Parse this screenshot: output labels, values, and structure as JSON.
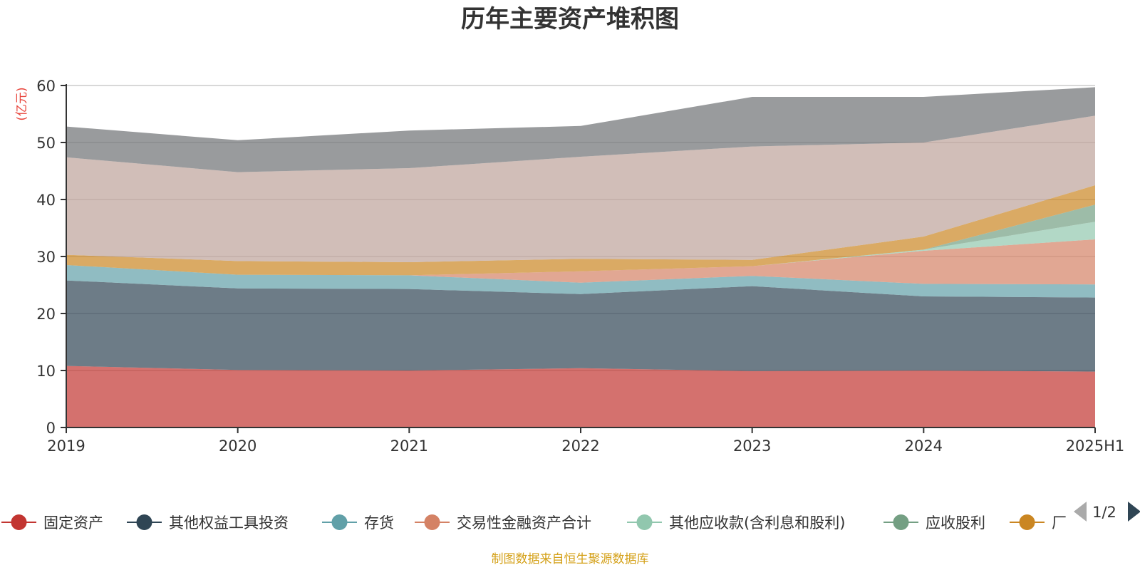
{
  "chart_data": {
    "type": "area",
    "stacked": true,
    "title": "历年主要资产堆积图",
    "unit_label": "亿元",
    "x": [
      "2019",
      "2020",
      "2021",
      "2022",
      "2023",
      "2024",
      "2025H1"
    ],
    "ylim": [
      0,
      60
    ],
    "yticks": [
      0,
      10,
      20,
      30,
      40,
      50,
      60
    ],
    "grid": true,
    "series": [
      {
        "name": "固定资产",
        "color": "#c23531",
        "values": [
          10.8,
          10.1,
          10.0,
          10.4,
          9.9,
          10.0,
          9.8
        ]
      },
      {
        "name": "其他权益工具投资",
        "color": "#2f4554",
        "values": [
          15.0,
          14.3,
          14.3,
          13.0,
          14.9,
          13.0,
          13.0
        ]
      },
      {
        "name": "存货",
        "color": "#61a0a8",
        "values": [
          2.7,
          2.4,
          2.4,
          2.0,
          1.8,
          2.2,
          2.3
        ]
      },
      {
        "name": "交易性金融资产合计",
        "color": "#d48265",
        "values": [
          0.0,
          0.0,
          0.0,
          2.0,
          1.7,
          5.8,
          7.9
        ]
      },
      {
        "name": "其他应收款(含利息和股利)",
        "color": "#91c7ae",
        "values": [
          0.0,
          0.0,
          0.0,
          0.0,
          0.0,
          0.2,
          3.1
        ]
      },
      {
        "name": "应收股利",
        "color": "#749f83",
        "values": [
          0.0,
          0.0,
          0.0,
          0.0,
          0.0,
          0.0,
          3.0
        ]
      },
      {
        "name": "",
        "color": "#ca8622",
        "values": [
          1.8,
          2.4,
          2.3,
          2.2,
          1.1,
          2.3,
          3.4
        ]
      },
      {
        "name": "",
        "color": "#bda29a",
        "values": [
          17.1,
          15.6,
          16.5,
          17.9,
          19.9,
          16.5,
          12.2
        ]
      },
      {
        "name": "",
        "color": "#6e7074",
        "values": [
          5.4,
          5.6,
          6.6,
          5.4,
          8.7,
          8.0,
          5.0
        ]
      }
    ],
    "legend": {
      "placement": "bottom",
      "visible_items": [
        "固定资产",
        "其他权益工具投资",
        "存货",
        "交易性金融资产合计",
        "其他应收款(含利息和股利)",
        "应收股利"
      ],
      "truncated_item_text": "厂",
      "page": "1/2"
    },
    "source_note": "制图数据来自恒生聚源数据库",
    "colors": {
      "unit": "#e8453c",
      "source": "#d4a017",
      "axis": "#333333",
      "grid": "#cccccc"
    }
  }
}
